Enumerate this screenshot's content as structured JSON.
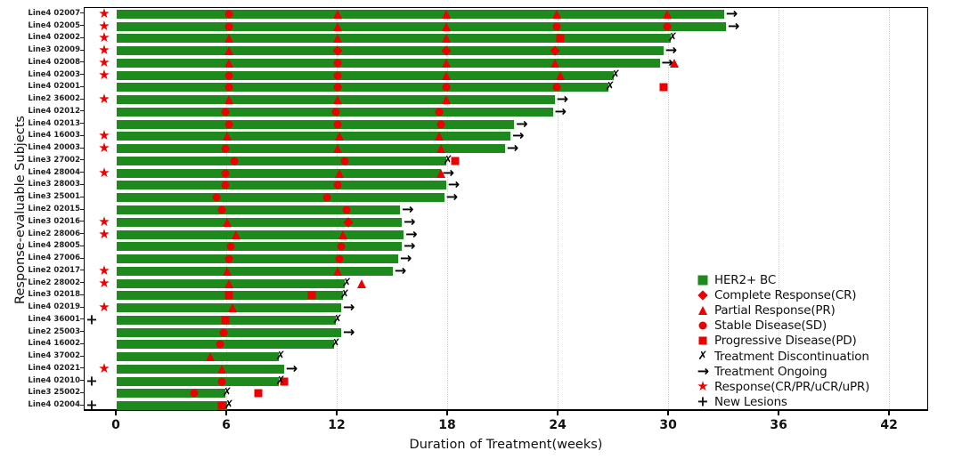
{
  "colors": {
    "bar_green": "#1e8a1e",
    "marker_red": "#ee0000",
    "axis_black": "#111111"
  },
  "axes": {
    "x_label": "Duration of Treatment(weeks)",
    "y_label": "Response-evaluable Subjects",
    "x_ticks": [
      0,
      6,
      12,
      18,
      24,
      30,
      36,
      42
    ],
    "x_min": -1.75,
    "x_max": 44.1,
    "grid": "dotted-vertical"
  },
  "legend": [
    {
      "label": "HER2+ BC",
      "marker": "barswatch"
    },
    {
      "label": "Complete Response(CR)",
      "marker": "diamond"
    },
    {
      "label": "Partial Response(PR)",
      "marker": "triangle"
    },
    {
      "label": "Stable Disease(SD)",
      "marker": "circle"
    },
    {
      "label": "Progressive Disease(PD)",
      "marker": "square"
    },
    {
      "label": "Treatment Discontinuation",
      "marker": "x"
    },
    {
      "label": "Treatment Ongoing",
      "marker": "arrow"
    },
    {
      "label": "Response(CR/PR/uCR/uPR)",
      "marker": "star"
    },
    {
      "label": "New Lesions",
      "marker": "plus"
    }
  ],
  "chart_data": {
    "type": "bar",
    "subtype": "swimmer-plot",
    "title": "",
    "xlabel": "Duration of Treatment(weeks)",
    "ylabel": "Response-evaluable Subjects",
    "xlim": [
      -1.75,
      44.1
    ],
    "bar_color_meaning": "HER2+ BC",
    "marker_types": {
      "circle": "SD",
      "triangle": "PR",
      "diamond": "CR",
      "square": "PD",
      "x": "discontinued",
      "arrow": "ongoing",
      "star": "response",
      "plus": "new lesions"
    },
    "subjects": [
      {
        "label": "Line4 02007",
        "pre": "star",
        "end": 33.0,
        "status": "ongoing",
        "markers": [
          {
            "w": 6.1,
            "t": "circle"
          },
          {
            "w": 12.0,
            "t": "triangle"
          },
          {
            "w": 17.9,
            "t": "triangle"
          },
          {
            "w": 23.9,
            "t": "triangle"
          },
          {
            "w": 29.9,
            "t": "triangle"
          }
        ]
      },
      {
        "label": "Line4 02005",
        "pre": "star",
        "end": 33.1,
        "status": "ongoing",
        "markers": [
          {
            "w": 6.1,
            "t": "circle"
          },
          {
            "w": 12.0,
            "t": "triangle"
          },
          {
            "w": 17.9,
            "t": "triangle"
          },
          {
            "w": 23.9,
            "t": "circle"
          },
          {
            "w": 29.9,
            "t": "circle"
          }
        ]
      },
      {
        "label": "Line4 02002",
        "pre": "star",
        "end": 30.1,
        "status": "discontinued",
        "markers": [
          {
            "w": 6.1,
            "t": "triangle"
          },
          {
            "w": 12.0,
            "t": "triangle"
          },
          {
            "w": 17.9,
            "t": "triangle"
          },
          {
            "w": 24.1,
            "t": "square"
          }
        ]
      },
      {
        "label": "Line3 02009",
        "pre": "star",
        "end": 29.7,
        "status": "ongoing",
        "markers": [
          {
            "w": 6.1,
            "t": "triangle"
          },
          {
            "w": 12.0,
            "t": "diamond"
          },
          {
            "w": 17.9,
            "t": "diamond"
          },
          {
            "w": 23.8,
            "t": "diamond"
          }
        ]
      },
      {
        "label": "Line4 02008",
        "pre": "star",
        "end": 29.5,
        "status": "ongoing",
        "markers": [
          {
            "w": 6.1,
            "t": "triangle"
          },
          {
            "w": 12.0,
            "t": "circle"
          },
          {
            "w": 17.9,
            "t": "triangle"
          },
          {
            "w": 23.8,
            "t": "triangle"
          },
          {
            "w": 30.3,
            "t": "triangle"
          }
        ]
      },
      {
        "label": "Line4 02003",
        "pre": "star",
        "end": 27.0,
        "status": "discontinued",
        "markers": [
          {
            "w": 6.1,
            "t": "circle"
          },
          {
            "w": 12.0,
            "t": "circle"
          },
          {
            "w": 17.9,
            "t": "triangle"
          },
          {
            "w": 24.1,
            "t": "triangle"
          }
        ]
      },
      {
        "label": "Line4 02001",
        "pre": null,
        "end": 26.7,
        "status": "discontinued",
        "markers": [
          {
            "w": 6.1,
            "t": "circle"
          },
          {
            "w": 12.0,
            "t": "circle"
          },
          {
            "w": 17.9,
            "t": "circle"
          },
          {
            "w": 23.9,
            "t": "circle"
          },
          {
            "w": 29.7,
            "t": "square"
          }
        ]
      },
      {
        "label": "Line2 36002",
        "pre": "star",
        "end": 23.8,
        "status": "ongoing",
        "markers": [
          {
            "w": 6.1,
            "t": "triangle"
          },
          {
            "w": 12.0,
            "t": "triangle"
          },
          {
            "w": 17.9,
            "t": "triangle"
          }
        ]
      },
      {
        "label": "Line4 02012",
        "pre": null,
        "end": 23.7,
        "status": "ongoing",
        "markers": [
          {
            "w": 5.9,
            "t": "circle"
          },
          {
            "w": 11.9,
            "t": "circle"
          },
          {
            "w": 17.5,
            "t": "circle"
          }
        ]
      },
      {
        "label": "Line4 02013",
        "pre": null,
        "end": 21.6,
        "status": "ongoing",
        "markers": [
          {
            "w": 6.1,
            "t": "circle"
          },
          {
            "w": 12.0,
            "t": "circle"
          },
          {
            "w": 17.6,
            "t": "circle"
          }
        ]
      },
      {
        "label": "Line4 16003",
        "pre": "star",
        "end": 21.4,
        "status": "ongoing",
        "markers": [
          {
            "w": 6.0,
            "t": "triangle"
          },
          {
            "w": 12.1,
            "t": "triangle"
          },
          {
            "w": 17.5,
            "t": "triangle"
          }
        ]
      },
      {
        "label": "Line4 20003",
        "pre": "star",
        "end": 21.1,
        "status": "ongoing",
        "markers": [
          {
            "w": 5.9,
            "t": "circle"
          },
          {
            "w": 12.0,
            "t": "triangle"
          },
          {
            "w": 17.6,
            "t": "triangle"
          }
        ]
      },
      {
        "label": "Line3 27002",
        "pre": null,
        "end": 17.9,
        "status": "discontinued",
        "markers": [
          {
            "w": 6.4,
            "t": "circle"
          },
          {
            "w": 12.4,
            "t": "circle"
          },
          {
            "w": 18.4,
            "t": "square"
          }
        ]
      },
      {
        "label": "Line4 28004",
        "pre": "star",
        "end": 17.6,
        "status": "ongoing",
        "markers": [
          {
            "w": 5.9,
            "t": "circle"
          },
          {
            "w": 12.1,
            "t": "triangle"
          },
          {
            "w": 17.6,
            "t": "triangle"
          }
        ]
      },
      {
        "label": "Line3 28003",
        "pre": null,
        "end": 17.9,
        "status": "ongoing",
        "markers": [
          {
            "w": 5.9,
            "t": "circle"
          },
          {
            "w": 12.0,
            "t": "circle"
          }
        ]
      },
      {
        "label": "Line3 25001",
        "pre": null,
        "end": 17.8,
        "status": "ongoing",
        "markers": [
          {
            "w": 5.4,
            "t": "circle"
          },
          {
            "w": 11.4,
            "t": "circle"
          }
        ]
      },
      {
        "label": "Line2 02015",
        "pre": null,
        "end": 15.4,
        "status": "ongoing",
        "markers": [
          {
            "w": 5.7,
            "t": "circle"
          },
          {
            "w": 12.5,
            "t": "circle"
          }
        ]
      },
      {
        "label": "Line3 02016",
        "pre": "star",
        "end": 15.5,
        "status": "ongoing",
        "markers": [
          {
            "w": 6.0,
            "t": "triangle"
          },
          {
            "w": 12.6,
            "t": "diamond"
          }
        ]
      },
      {
        "label": "Line2 28006",
        "pre": "star",
        "end": 15.6,
        "status": "ongoing",
        "markers": [
          {
            "w": 6.5,
            "t": "triangle"
          },
          {
            "w": 12.3,
            "t": "triangle"
          }
        ]
      },
      {
        "label": "Line4 28005",
        "pre": null,
        "end": 15.5,
        "status": "ongoing",
        "markers": [
          {
            "w": 6.2,
            "t": "circle"
          },
          {
            "w": 12.2,
            "t": "circle"
          }
        ]
      },
      {
        "label": "Line4 27006",
        "pre": null,
        "end": 15.3,
        "status": "ongoing",
        "markers": [
          {
            "w": 6.1,
            "t": "circle"
          },
          {
            "w": 12.1,
            "t": "circle"
          }
        ]
      },
      {
        "label": "Line2 02017",
        "pre": "star",
        "end": 15.0,
        "status": "ongoing",
        "markers": [
          {
            "w": 6.0,
            "t": "triangle"
          },
          {
            "w": 12.0,
            "t": "triangle"
          }
        ]
      },
      {
        "label": "Line2 28002",
        "pre": "star",
        "end": 12.4,
        "status": "discontinued",
        "markers": [
          {
            "w": 6.1,
            "t": "triangle"
          },
          {
            "w": 13.3,
            "t": "triangle"
          }
        ]
      },
      {
        "label": "Line3 02018",
        "pre": null,
        "end": 12.3,
        "status": "discontinued",
        "markers": [
          {
            "w": 6.1,
            "t": "square"
          },
          {
            "w": 10.6,
            "t": "square"
          }
        ]
      },
      {
        "label": "Line4 02019",
        "pre": "star",
        "end": 12.2,
        "status": "ongoing",
        "markers": [
          {
            "w": 6.3,
            "t": "triangle"
          }
        ]
      },
      {
        "label": "Line4 36001",
        "pre": "plus",
        "end": 11.9,
        "status": "discontinued",
        "markers": [
          {
            "w": 5.9,
            "t": "square"
          }
        ]
      },
      {
        "label": "Line2 25003",
        "pre": null,
        "end": 12.2,
        "status": "ongoing",
        "markers": [
          {
            "w": 5.8,
            "t": "circle"
          }
        ]
      },
      {
        "label": "Line4 16002",
        "pre": null,
        "end": 11.8,
        "status": "discontinued",
        "markers": [
          {
            "w": 5.6,
            "t": "circle"
          }
        ]
      },
      {
        "label": "Line4 37002",
        "pre": null,
        "end": 8.8,
        "status": "discontinued",
        "markers": [
          {
            "w": 5.1,
            "t": "triangle"
          }
        ]
      },
      {
        "label": "Line4 02021",
        "pre": "star",
        "end": 9.1,
        "status": "ongoing",
        "markers": [
          {
            "w": 5.7,
            "t": "triangle"
          }
        ]
      },
      {
        "label": "Line4 02010",
        "pre": "plus",
        "end": 8.8,
        "status": "discontinued",
        "markers": [
          {
            "w": 5.7,
            "t": "circle"
          },
          {
            "w": 9.1,
            "t": "square"
          }
        ]
      },
      {
        "label": "Line3 25002",
        "pre": null,
        "end": 5.9,
        "status": "discontinued",
        "markers": [
          {
            "w": 4.2,
            "t": "circle"
          },
          {
            "w": 7.7,
            "t": "square"
          }
        ]
      },
      {
        "label": "Line4 02004",
        "pre": "plus",
        "end": 6.0,
        "status": "discontinued",
        "markers": [
          {
            "w": 5.7,
            "t": "square"
          }
        ]
      }
    ]
  }
}
